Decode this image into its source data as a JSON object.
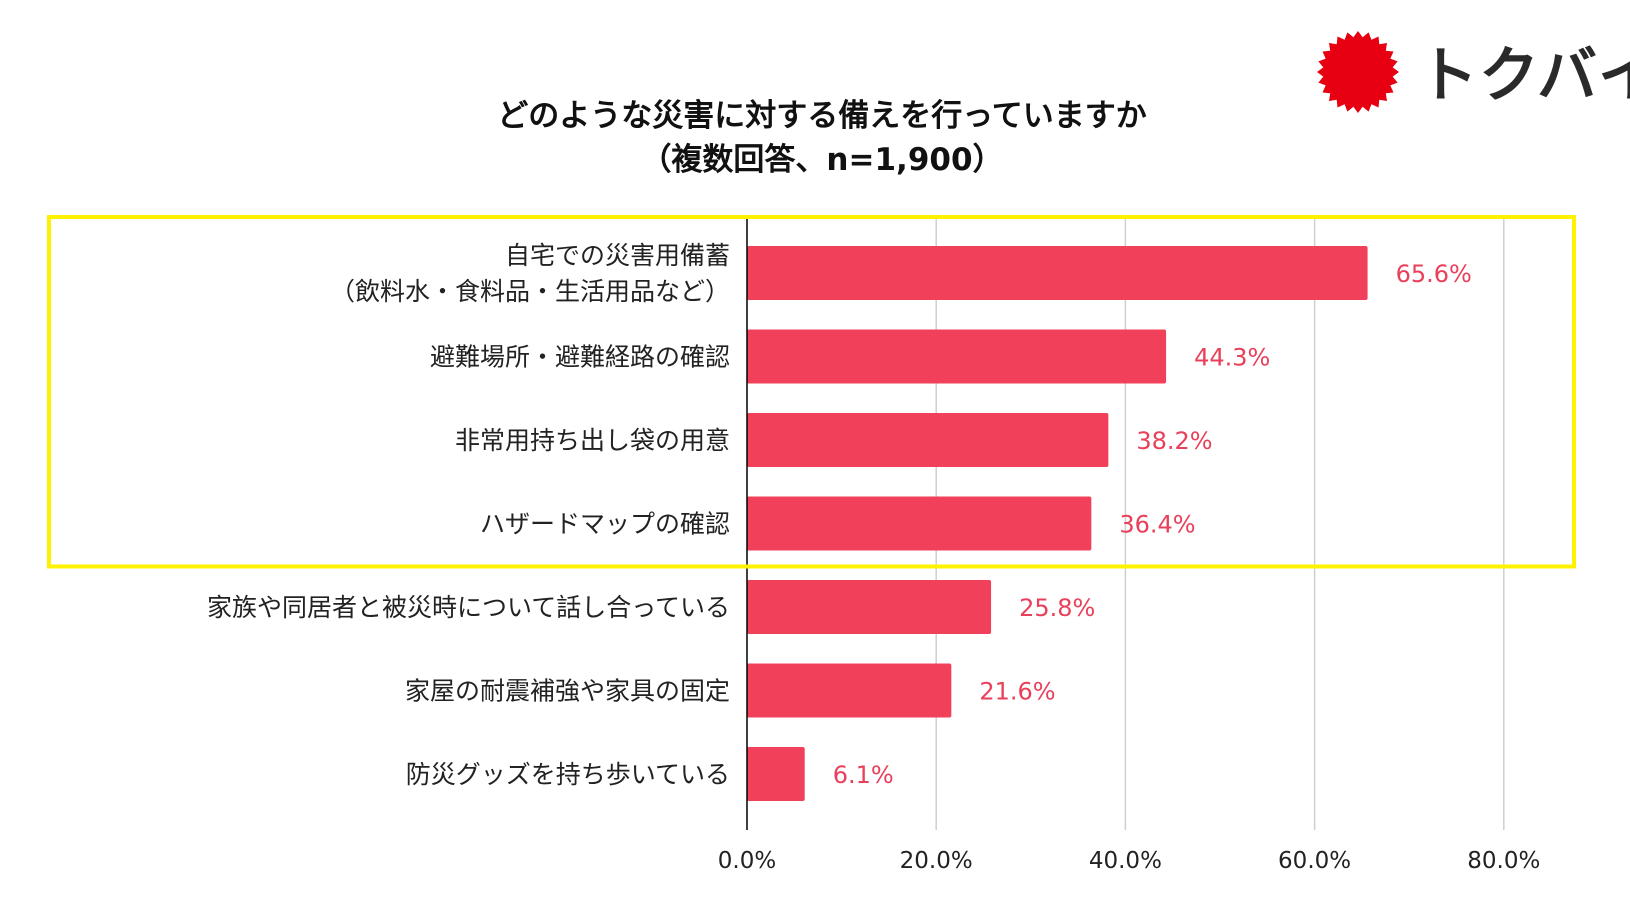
{
  "brand": {
    "logo_text": "トクバイ",
    "logo_color": "#e60012",
    "logo_icon": "red-burst-icon"
  },
  "colors": {
    "bar": "#f0405a",
    "value_label": "#e8405a",
    "highlight_border": "#fff200",
    "grid": "#cfcfcf",
    "axis": "#000000"
  },
  "highlight": {
    "from_index": 0,
    "to_index": 3
  },
  "chart_data": {
    "type": "bar",
    "orientation": "horizontal",
    "title": "どのような災害に対する備えを行っていますか",
    "subtitle": "（複数回答、n=1,900）",
    "categories": [
      [
        "自宅での災害用備蓄",
        "（飲料水・食料品・生活用品など）"
      ],
      [
        "避難場所・避難経路の確認"
      ],
      [
        "非常用持ち出し袋の用意"
      ],
      [
        "ハザードマップの確認"
      ],
      [
        "家族や同居者と被災時について話し合っている"
      ],
      [
        "家屋の耐震補強や家具の固定"
      ],
      [
        "防災グッズを持ち歩いている"
      ]
    ],
    "values": [
      65.6,
      44.3,
      38.2,
      36.4,
      25.8,
      21.6,
      6.1
    ],
    "value_labels": [
      "65.6%",
      "44.3%",
      "38.2%",
      "36.4%",
      "25.8%",
      "21.6%",
      "6.1%"
    ],
    "xlim": [
      0,
      80
    ],
    "xticks": [
      0,
      20,
      40,
      60,
      80
    ],
    "xtick_labels": [
      "0.0%",
      "20.0%",
      "40.0%",
      "60.0%",
      "80.0%"
    ],
    "grid": "vertical",
    "legend": "none"
  }
}
